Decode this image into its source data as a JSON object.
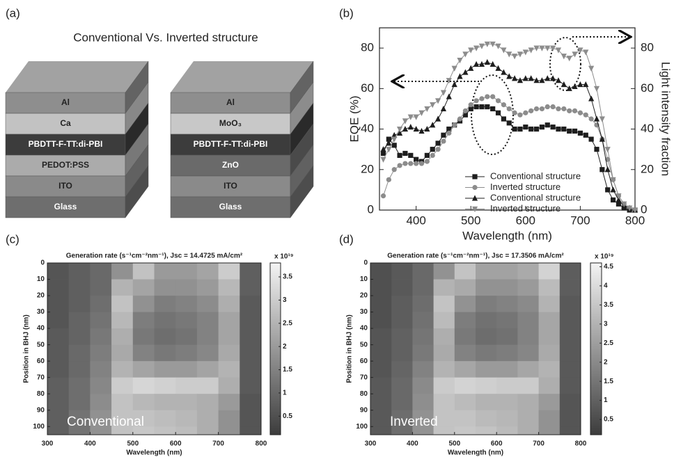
{
  "panel_labels": [
    "(a)",
    "(b)",
    "(c)",
    "(d)"
  ],
  "structure_diagram": {
    "title": "Conventional  Vs. Inverted structure",
    "stacks": [
      {
        "layers": [
          {
            "label": "Al",
            "color": "#8e8e8e"
          },
          {
            "label": "Ca",
            "color": "#c2c2c2"
          },
          {
            "label": "PBDTT-F-TT:di-PBI",
            "color": "#3c3c3c"
          },
          {
            "label": "PEDOT:PSS",
            "color": "#ababab"
          },
          {
            "label": "ITO",
            "color": "#8a8a8a"
          },
          {
            "label": "Glass",
            "color": "#6e6e6e"
          }
        ]
      },
      {
        "layers": [
          {
            "label": "Al",
            "color": "#8e8e8e"
          },
          {
            "label": "MoO₃",
            "color": "#c8c8c8"
          },
          {
            "label": "PBDTT-F-TT:di-PBI",
            "color": "#3c3c3c"
          },
          {
            "label": "ZnO",
            "color": "#6a6a6a"
          },
          {
            "label": "ITO",
            "color": "#8a8a8a"
          },
          {
            "label": "Glass",
            "color": "#6e6e6e"
          }
        ]
      }
    ]
  },
  "chart_data": [
    {
      "type": "line",
      "xlabel": "Wavelength (nm)",
      "ylabel": "EQE (%)",
      "y2label": "Light intensity fraction",
      "x": [
        340,
        350,
        360,
        370,
        380,
        390,
        400,
        410,
        420,
        430,
        440,
        450,
        460,
        470,
        480,
        490,
        500,
        510,
        520,
        530,
        540,
        550,
        560,
        570,
        580,
        590,
        600,
        610,
        620,
        630,
        640,
        650,
        660,
        670,
        680,
        690,
        700,
        710,
        720,
        730,
        740,
        750,
        760,
        770,
        780,
        790,
        800
      ],
      "xlim": [
        333,
        800
      ],
      "xticks": [
        400,
        500,
        600,
        700,
        800
      ],
      "ylim": [
        0,
        90
      ],
      "yticks": [
        0,
        20,
        40,
        60,
        80
      ],
      "y2lim": [
        0,
        90
      ],
      "y2ticks": [
        0,
        20,
        40,
        60,
        80
      ],
      "legend": "lower center",
      "series": [
        {
          "name": "Conventional structure",
          "color": "#1e1e1e",
          "marker": "square",
          "values": [
            28,
            35,
            32,
            27,
            28,
            27,
            25,
            24,
            27,
            30,
            33,
            37,
            40,
            42,
            44,
            47,
            50,
            51,
            51,
            51,
            50,
            48,
            45,
            43,
            40,
            40,
            41,
            40,
            40,
            41,
            42,
            41,
            40,
            40,
            39,
            39,
            38,
            37,
            35,
            30,
            20,
            10,
            5,
            3,
            1,
            0,
            0
          ]
        },
        {
          "name": "Inverted structure",
          "color": "#8c8c8c",
          "marker": "circle",
          "values": [
            7,
            15,
            20,
            22,
            23,
            23,
            23,
            23,
            24,
            27,
            30,
            34,
            38,
            42,
            45,
            49,
            52,
            54,
            55,
            56,
            56,
            54,
            52,
            50,
            48,
            47,
            48,
            49,
            50,
            50,
            51,
            51,
            50,
            50,
            49,
            49,
            48,
            47,
            45,
            42,
            35,
            25,
            15,
            7,
            3,
            1,
            0
          ]
        },
        {
          "name": "Conventional structure",
          "color": "#1e1e1e",
          "marker": "triangle-up",
          "axis": "y2",
          "values": [
            30,
            33,
            37,
            38,
            40,
            41,
            40,
            39,
            40,
            42,
            45,
            50,
            56,
            62,
            66,
            68,
            70,
            72,
            72,
            73,
            72,
            70,
            68,
            66,
            65,
            64,
            65,
            65,
            64,
            64,
            65,
            65,
            64,
            62,
            60,
            61,
            62,
            62,
            55,
            45,
            35,
            20,
            10,
            5,
            2,
            1,
            0
          ]
        },
        {
          "name": "Inverted structure",
          "color": "#8c8c8c",
          "marker": "triangle-down",
          "axis": "y2",
          "values": [
            25,
            30,
            35,
            40,
            44,
            46,
            46,
            48,
            50,
            52,
            54,
            58,
            64,
            70,
            74,
            77,
            79,
            80,
            81,
            82,
            82,
            81,
            79,
            77,
            76,
            77,
            78,
            79,
            80,
            80,
            80,
            80,
            79,
            76,
            75,
            77,
            79,
            78,
            70,
            60,
            45,
            30,
            15,
            7,
            3,
            1,
            0
          ]
        }
      ]
    },
    {
      "type": "heatmap",
      "title": "Generation rate (s⁻¹cm⁻²nm⁻¹), Jsc = 14.4725 mA/cm²",
      "xlabel": "Wavelength (nm)",
      "ylabel": "Position in BHJ (nm)",
      "annotation": "Conventional",
      "colorbar_label": "x 10¹⁹",
      "colormap": "gray",
      "x_bins": [
        300,
        350,
        400,
        450,
        500,
        550,
        600,
        650,
        700,
        750,
        800
      ],
      "y_bins": [
        0,
        10,
        20,
        30,
        40,
        50,
        60,
        70,
        80,
        90,
        100,
        105
      ],
      "xlim": [
        300,
        800
      ],
      "xticks": [
        300,
        400,
        500,
        600,
        700,
        800
      ],
      "ylim": [
        0,
        105
      ],
      "yticks": [
        0,
        10,
        20,
        30,
        40,
        50,
        60,
        70,
        80,
        90,
        100
      ],
      "clim": [
        0.1,
        3.8
      ],
      "cticks": [
        0.5,
        1,
        1.5,
        2,
        2.5,
        3,
        3.5
      ],
      "values": [
        [
          0.6,
          0.8,
          1.0,
          1.8,
          2.8,
          2.0,
          2.0,
          2.2,
          3.0,
          0.8
        ],
        [
          0.6,
          0.8,
          1.0,
          2.5,
          2.2,
          1.8,
          1.8,
          2.0,
          2.6,
          0.8
        ],
        [
          0.6,
          0.8,
          1.1,
          2.8,
          1.8,
          1.4,
          1.5,
          1.7,
          2.4,
          0.7
        ],
        [
          0.6,
          0.9,
          1.2,
          2.6,
          1.4,
          1.2,
          1.3,
          1.5,
          2.2,
          0.7
        ],
        [
          0.7,
          0.9,
          1.3,
          2.4,
          1.3,
          1.1,
          1.2,
          1.5,
          2.2,
          0.7
        ],
        [
          0.7,
          1.0,
          1.4,
          2.3,
          1.5,
          1.3,
          1.4,
          1.6,
          2.3,
          0.7
        ],
        [
          0.7,
          1.0,
          1.5,
          2.5,
          2.2,
          2.0,
          2.0,
          2.2,
          2.5,
          0.7
        ],
        [
          0.8,
          1.1,
          1.6,
          3.0,
          3.2,
          3.1,
          3.0,
          3.0,
          2.4,
          0.7
        ],
        [
          0.8,
          1.1,
          1.7,
          2.8,
          2.6,
          2.5,
          2.5,
          2.4,
          2.0,
          0.6
        ],
        [
          0.8,
          1.2,
          1.8,
          2.8,
          2.8,
          2.7,
          2.6,
          2.4,
          1.8,
          0.6
        ],
        [
          0.8,
          1.2,
          1.8,
          2.8,
          2.9,
          2.8,
          2.7,
          2.4,
          1.8,
          0.6
        ]
      ]
    },
    {
      "type": "heatmap",
      "title": "Generation rate (s⁻¹cm⁻²nm⁻¹), Jsc = 17.3506 mA/cm²",
      "xlabel": "Wavelength (nm)",
      "ylabel": "Position in BHJ (nm)",
      "annotation": "Inverted",
      "colorbar_label": "x 10¹⁹",
      "colormap": "gray",
      "x_bins": [
        300,
        350,
        400,
        450,
        500,
        550,
        600,
        650,
        700,
        750,
        800
      ],
      "y_bins": [
        0,
        10,
        20,
        30,
        40,
        50,
        60,
        70,
        80,
        90,
        100,
        105
      ],
      "xlim": [
        300,
        800
      ],
      "xticks": [
        300,
        400,
        500,
        600,
        700,
        800
      ],
      "ylim": [
        0,
        105
      ],
      "yticks": [
        0,
        10,
        20,
        30,
        40,
        50,
        60,
        70,
        80,
        90,
        100
      ],
      "clim": [
        0.1,
        4.6
      ],
      "cticks": [
        0.5,
        1,
        1.5,
        2,
        2.5,
        3,
        3.5,
        4,
        4.5
      ],
      "values": [
        [
          0.6,
          0.8,
          1.2,
          2.2,
          3.4,
          2.6,
          2.6,
          2.8,
          3.8,
          0.9
        ],
        [
          0.6,
          0.8,
          1.2,
          3.0,
          2.8,
          2.2,
          2.2,
          2.4,
          3.2,
          0.9
        ],
        [
          0.6,
          0.9,
          1.3,
          3.4,
          2.2,
          1.7,
          1.8,
          2.0,
          3.0,
          0.8
        ],
        [
          0.6,
          0.9,
          1.4,
          3.2,
          1.7,
          1.4,
          1.5,
          1.8,
          2.7,
          0.8
        ],
        [
          0.7,
          1.0,
          1.5,
          2.9,
          1.6,
          1.3,
          1.4,
          1.8,
          2.7,
          0.8
        ],
        [
          0.7,
          1.0,
          1.6,
          2.8,
          1.8,
          1.6,
          1.7,
          1.9,
          2.8,
          0.8
        ],
        [
          0.7,
          1.1,
          1.8,
          3.0,
          2.7,
          2.4,
          2.4,
          2.7,
          3.0,
          0.8
        ],
        [
          0.8,
          1.2,
          2.0,
          3.6,
          3.8,
          3.7,
          3.6,
          3.6,
          2.9,
          0.8
        ],
        [
          0.8,
          1.2,
          2.1,
          3.4,
          3.2,
          3.0,
          3.0,
          2.9,
          2.4,
          0.7
        ],
        [
          0.8,
          1.3,
          2.2,
          3.4,
          3.4,
          3.2,
          3.1,
          2.9,
          2.2,
          0.7
        ],
        [
          0.8,
          1.3,
          2.2,
          3.4,
          3.5,
          3.4,
          3.2,
          2.9,
          2.2,
          0.7
        ]
      ]
    }
  ]
}
